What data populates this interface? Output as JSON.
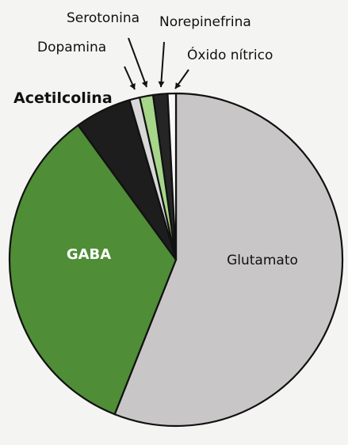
{
  "chart_data": {
    "type": "pie",
    "slices": [
      {
        "label": "Glutamato",
        "value": 56.0,
        "color": "#c9c6c8",
        "label_color": "#111111"
      },
      {
        "label": "GABA",
        "value": 34.0,
        "color": "#4f8d36",
        "label_color": "#ffffff"
      },
      {
        "label": "Acetilcolina",
        "value": 5.5,
        "color": "#1d1d1d",
        "label_color": "#111111"
      },
      {
        "label": "Dopamina",
        "value": 1.0,
        "color": "#d8d8d8",
        "label_color": "#111111"
      },
      {
        "label": "Serotonina",
        "value": 1.3,
        "color": "#a6d68a",
        "label_color": "#111111"
      },
      {
        "label": "Norepinefrina",
        "value": 1.4,
        "color": "#252525",
        "label_color": "#111111"
      },
      {
        "label": "Óxido nítrico",
        "value": 0.8,
        "color": "#f8f8f8",
        "label_color": "#111111"
      }
    ],
    "start_angle_deg": 0,
    "direction": "clockwise",
    "legend": "none",
    "grid": false
  }
}
